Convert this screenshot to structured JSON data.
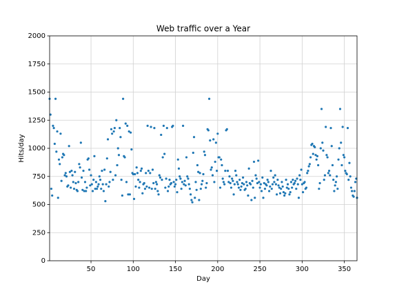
{
  "chart_data": {
    "type": "scatter",
    "title": "Web traffic over a Year",
    "xlabel": "Day",
    "ylabel": "Hits/day",
    "color": "#1f77b4",
    "grid": true,
    "xlim": [
      1,
      365
    ],
    "ylim": [
      0,
      2000
    ],
    "xticks": [
      50,
      100,
      150,
      200,
      250,
      300,
      350
    ],
    "yticks": [
      0,
      250,
      500,
      750,
      1000,
      1250,
      1500,
      1750,
      2000
    ],
    "x": [
      1,
      2,
      3,
      4,
      5,
      6,
      7,
      8,
      9,
      10,
      11,
      12,
      13,
      14,
      15,
      16,
      17,
      18,
      19,
      20,
      21,
      22,
      23,
      24,
      25,
      26,
      27,
      28,
      29,
      30,
      31,
      32,
      33,
      34,
      35,
      36,
      37,
      38,
      39,
      40,
      41,
      42,
      43,
      44,
      45,
      46,
      47,
      48,
      49,
      50,
      51,
      52,
      53,
      54,
      55,
      56,
      57,
      58,
      59,
      60,
      61,
      62,
      63,
      64,
      65,
      66,
      67,
      68,
      69,
      70,
      71,
      72,
      73,
      74,
      75,
      76,
      77,
      78,
      79,
      80,
      81,
      82,
      83,
      84,
      85,
      86,
      87,
      88,
      89,
      90,
      91,
      92,
      93,
      94,
      95,
      96,
      97,
      98,
      99,
      100,
      101,
      102,
      103,
      104,
      105,
      106,
      107,
      108,
      109,
      110,
      111,
      112,
      113,
      114,
      115,
      116,
      117,
      118,
      119,
      120,
      121,
      122,
      123,
      124,
      125,
      126,
      127,
      128,
      129,
      130,
      131,
      132,
      133,
      134,
      135,
      136,
      137,
      138,
      139,
      140,
      141,
      142,
      143,
      144,
      145,
      146,
      147,
      148,
      149,
      150,
      151,
      152,
      153,
      154,
      155,
      156,
      157,
      158,
      159,
      160,
      161,
      162,
      163,
      164,
      165,
      166,
      167,
      168,
      169,
      170,
      171,
      172,
      173,
      174,
      175,
      176,
      177,
      178,
      179,
      180,
      181,
      182,
      183,
      184,
      185,
      186,
      187,
      188,
      189,
      190,
      191,
      192,
      193,
      194,
      195,
      196,
      197,
      198,
      199,
      200,
      201,
      202,
      203,
      204,
      205,
      206,
      207,
      208,
      209,
      210,
      211,
      212,
      213,
      214,
      215,
      216,
      217,
      218,
      219,
      220,
      221,
      222,
      223,
      224,
      225,
      226,
      227,
      228,
      229,
      230,
      231,
      232,
      233,
      234,
      235,
      236,
      237,
      238,
      239,
      240,
      241,
      242,
      243,
      244,
      245,
      246,
      247,
      248,
      249,
      250,
      251,
      252,
      253,
      254,
      255,
      256,
      257,
      258,
      259,
      260,
      261,
      262,
      263,
      264,
      265,
      266,
      267,
      268,
      269,
      270,
      271,
      272,
      273,
      274,
      275,
      276,
      277,
      278,
      279,
      280,
      281,
      282,
      283,
      284,
      285,
      286,
      287,
      288,
      289,
      290,
      291,
      292,
      293,
      294,
      295,
      296,
      297,
      298,
      299,
      300,
      301,
      302,
      303,
      304,
      305,
      306,
      307,
      308,
      309,
      310,
      311,
      312,
      313,
      314,
      315,
      316,
      317,
      318,
      319,
      320,
      321,
      322,
      323,
      324,
      325,
      326,
      327,
      328,
      329,
      330,
      331,
      332,
      333,
      334,
      335,
      336,
      337,
      338,
      339,
      340,
      341,
      342,
      343,
      344,
      345,
      346,
      347,
      348,
      349,
      350,
      351,
      352,
      353,
      354,
      355,
      356,
      357,
      358,
      359,
      360,
      361,
      362,
      363,
      364,
      365
    ],
    "values": [
      1440,
      1300,
      640,
      580,
      1200,
      1180,
      1040,
      1440,
      970,
      1150,
      560,
      900,
      860,
      1130,
      710,
      920,
      950,
      940,
      760,
      780,
      750,
      660,
      670,
      1020,
      790,
      650,
      800,
      760,
      700,
      640,
      790,
      690,
      630,
      620,
      700,
      860,
      830,
      1050,
      740,
      630,
      800,
      620,
      700,
      620,
      650,
      900,
      910,
      810,
      670,
      760,
      680,
      620,
      720,
      930,
      640,
      700,
      640,
      660,
      680,
      750,
      720,
      640,
      800,
      680,
      620,
      810,
      530,
      680,
      910,
      1080,
      660,
      700,
      790,
      1170,
      1130,
      720,
      1150,
      1180,
      760,
      1250,
      850,
      1000,
      940,
      1180,
      1100,
      720,
      580,
      1440,
      930,
      920,
      1220,
      700,
      1200,
      590,
      1150,
      590,
      1140,
      990,
      780,
      770,
      550,
      770,
      660,
      830,
      780,
      720,
      650,
      700,
      800,
      820,
      600,
      680,
      690,
      640,
      780,
      660,
      1200,
      800,
      650,
      780,
      1190,
      640,
      810,
      690,
      1180,
      640,
      700,
      680,
      620,
      590,
      760,
      740,
      1120,
      720,
      920,
      1200,
      950,
      650,
      730,
      1180,
      620,
      660,
      720,
      680,
      690,
      1190,
      1200,
      700,
      660,
      680,
      720,
      610,
      900,
      820,
      750,
      730,
      640,
      700,
      1200,
      680,
      710,
      670,
      920,
      750,
      730,
      680,
      640,
      590,
      540,
      520,
      960,
      1100,
      560,
      700,
      630,
      850,
      790,
      540,
      780,
      640,
      680,
      710,
      770,
      970,
      940,
      650,
      690,
      1170,
      1160,
      1440,
      1070,
      810,
      830,
      760,
      1080,
      700,
      880,
      1050,
      800,
      1130,
      920,
      920,
      650,
      900,
      850,
      730,
      700,
      680,
      800,
      1160,
      1170,
      800,
      700,
      750,
      690,
      650,
      730,
      710,
      590,
      680,
      800,
      760,
      700,
      680,
      650,
      720,
      630,
      660,
      690,
      740,
      680,
      630,
      640,
      700,
      670,
      580,
      820,
      690,
      680,
      540,
      710,
      650,
      880,
      560,
      760,
      730,
      690,
      890,
      700,
      650,
      680,
      620,
      740,
      560,
      690,
      640,
      680,
      670,
      720,
      700,
      620,
      660,
      800,
      640,
      680,
      740,
      700,
      760,
      680,
      590,
      720,
      670,
      650,
      600,
      640,
      700,
      660,
      610,
      580,
      600,
      720,
      650,
      680,
      640,
      590,
      610,
      700,
      650,
      720,
      680,
      690,
      710,
      640,
      730,
      680,
      560,
      760,
      720,
      810,
      680,
      610,
      690,
      700,
      640,
      650,
      780,
      800,
      840,
      860,
      920,
      1030,
      1040,
      950,
      1020,
      1010,
      940,
      900,
      930,
      850,
      640,
      690,
      1000,
      1350,
      1050,
      980,
      720,
      760,
      1190,
      940,
      920,
      780,
      800,
      760,
      1180,
      1020,
      850,
      720,
      620,
      670,
      700,
      750,
      640,
      900,
      1000,
      1350,
      1050,
      850,
      1190,
      940,
      920,
      800,
      780,
      770,
      1180,
      720,
      870,
      750,
      650,
      620,
      580,
      570,
      620,
      700,
      730,
      560
    ]
  }
}
